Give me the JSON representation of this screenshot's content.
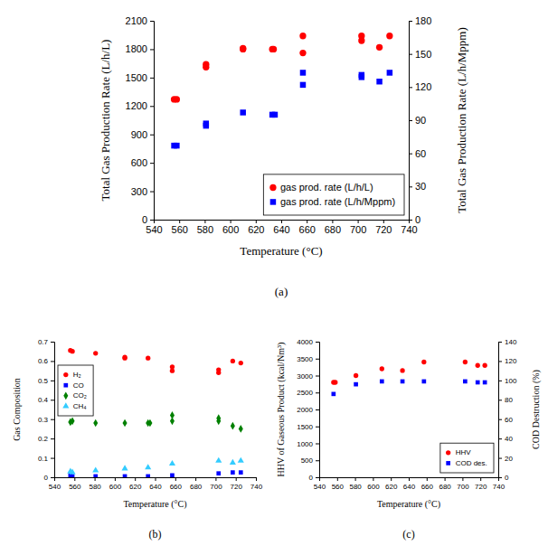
{
  "chart_data": [
    {
      "type": "scatter",
      "title": "(a)",
      "x_label": "Temperature (°C)",
      "y_label": "Total Gas Production Rate (L/h/L)",
      "y2_label": "Total Gas Production Rate (L/h/Mppm)",
      "xlim": [
        540,
        740
      ],
      "xticks": [
        540,
        560,
        580,
        600,
        620,
        640,
        660,
        680,
        700,
        720,
        740
      ],
      "ylim": [
        0,
        2100
      ],
      "yticks": [
        0,
        300,
        600,
        900,
        1200,
        1500,
        1800,
        2100
      ],
      "y2lim": [
        0,
        180
      ],
      "y2ticks": [
        0,
        30,
        60,
        90,
        120,
        150,
        180
      ],
      "legend": "lower right",
      "series": [
        {
          "name": "gas prod. rate (L/h/L)",
          "color": "#ff0000",
          "marker": "circle",
          "x": [
            556,
            558,
            581,
            581,
            610,
            610,
            633,
            634,
            657,
            657,
            703,
            703,
            717,
            725
          ],
          "values": [
            1270,
            1270,
            1640,
            1610,
            1810,
            1800,
            1800,
            1800,
            1940,
            1760,
            1940,
            1890,
            1820,
            1940
          ]
        },
        {
          "name": "gas prod. rate (L/h/Mppm)",
          "color": "#0000ff",
          "marker": "square",
          "axis": "y2",
          "x": [
            556,
            558,
            581,
            581,
            610,
            633,
            635,
            657,
            657,
            703,
            703,
            717,
            725
          ],
          "values": [
            67,
            67,
            87,
            85,
            97,
            95,
            95,
            133,
            122,
            131,
            129,
            125,
            133
          ]
        }
      ]
    },
    {
      "type": "scatter",
      "title": "(b)",
      "x_label": "Temperature (°C)",
      "y_label": "Gas Composition",
      "xlim": [
        540,
        740
      ],
      "xticks": [
        540,
        560,
        580,
        600,
        620,
        640,
        660,
        680,
        700,
        720,
        740
      ],
      "ylim": [
        0,
        0.7
      ],
      "yticks": [
        0,
        0.1,
        0.2,
        0.3,
        0.4,
        0.5,
        0.6,
        0.7
      ],
      "legend": "upper left",
      "series": [
        {
          "name": "H₂",
          "color": "#ff0000",
          "marker": "circle",
          "x": [
            556,
            558,
            581,
            610,
            610,
            633,
            657,
            657,
            703,
            703,
            717,
            725
          ],
          "values": [
            0.655,
            0.65,
            0.64,
            0.62,
            0.615,
            0.615,
            0.57,
            0.55,
            0.555,
            0.54,
            0.6,
            0.59
          ]
        },
        {
          "name": "CO",
          "color": "#0000ff",
          "marker": "square",
          "x": [
            556,
            558,
            581,
            610,
            633,
            657,
            703,
            717,
            725
          ],
          "values": [
            0.01,
            0.005,
            0.005,
            0.005,
            0.005,
            0.01,
            0.02,
            0.025,
            0.025
          ]
        },
        {
          "name": "CO₂",
          "color": "#008000",
          "marker": "diamond",
          "x": [
            556,
            558,
            581,
            610,
            633,
            635,
            657,
            657,
            703,
            703,
            717,
            725
          ],
          "values": [
            0.285,
            0.29,
            0.28,
            0.28,
            0.28,
            0.28,
            0.32,
            0.29,
            0.305,
            0.29,
            0.265,
            0.25
          ]
        },
        {
          "name": "CH₄",
          "color": "#33ccff",
          "marker": "triangle",
          "x": [
            556,
            558,
            581,
            610,
            633,
            657,
            703,
            717,
            725
          ],
          "values": [
            0.03,
            0.025,
            0.035,
            0.045,
            0.05,
            0.07,
            0.085,
            0.075,
            0.085
          ]
        }
      ]
    },
    {
      "type": "scatter",
      "title": "(c)",
      "x_label": "Temperature (°C)",
      "y_label": "HHV of Gaseous Product (kcal/Nm³)",
      "y2_label": "COD Destruction (%)",
      "xlim": [
        540,
        740
      ],
      "xticks": [
        540,
        560,
        580,
        600,
        620,
        640,
        660,
        680,
        700,
        720,
        740
      ],
      "ylim": [
        0,
        4000
      ],
      "yticks": [
        0,
        500,
        1000,
        1500,
        2000,
        2500,
        3000,
        3500,
        4000
      ],
      "y2lim": [
        0,
        140
      ],
      "y2ticks": [
        0,
        20,
        40,
        60,
        80,
        100,
        120,
        140
      ],
      "legend": "lower right",
      "series": [
        {
          "name": "HHV",
          "color": "#ff0000",
          "marker": "circle",
          "x": [
            556,
            558,
            581,
            610,
            633,
            657,
            703,
            717,
            725
          ],
          "values": [
            2800,
            2800,
            3000,
            3200,
            3150,
            3400,
            3400,
            3300,
            3300
          ]
        },
        {
          "name": "COD des.",
          "color": "#0000ff",
          "marker": "square",
          "axis": "y2",
          "x": [
            556,
            581,
            610,
            633,
            657,
            703,
            717,
            725
          ],
          "values": [
            86,
            96,
            99,
            99,
            99,
            99,
            98,
            98
          ]
        }
      ]
    }
  ]
}
